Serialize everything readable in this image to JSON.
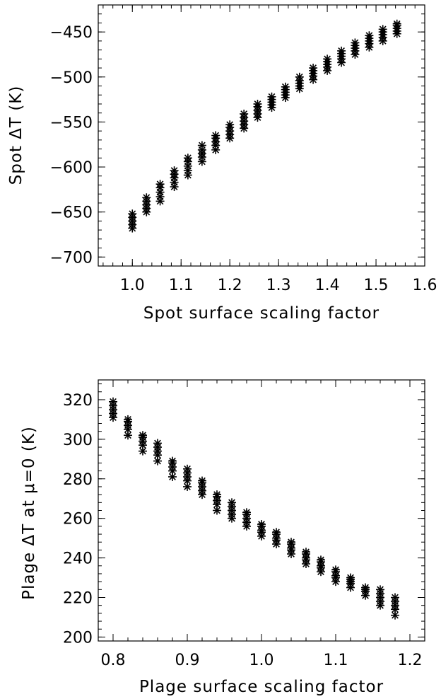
{
  "chart_data": [
    {
      "type": "scatter",
      "xlabel": "Spot surface scaling factor",
      "ylabel": "Spot ΔT (K)",
      "xlim": [
        0.93,
        1.6
      ],
      "ylim": [
        -710,
        -420
      ],
      "xticks": [
        1.0,
        1.1,
        1.2,
        1.3,
        1.4,
        1.5,
        1.6
      ],
      "xtick_labels": [
        "1.0",
        "1.1",
        "1.2",
        "1.3",
        "1.4",
        "1.5",
        "1.6"
      ],
      "yticks": [
        -700,
        -650,
        -600,
        -550,
        -500,
        -450
      ],
      "ytick_labels": [
        "−700",
        "−650",
        "−600",
        "−550",
        "−500",
        "−450"
      ],
      "grid": false,
      "marker": "asterisk",
      "points": [
        {
          "x": 1.0,
          "y": [
            -668,
            -664,
            -660,
            -656,
            -652
          ]
        },
        {
          "x": 1.029,
          "y": [
            -650,
            -646,
            -642,
            -638,
            -634
          ]
        },
        {
          "x": 1.057,
          "y": [
            -638,
            -633,
            -628,
            -623,
            -619
          ]
        },
        {
          "x": 1.086,
          "y": [
            -622,
            -617,
            -612,
            -608,
            -604
          ]
        },
        {
          "x": 1.114,
          "y": [
            -609,
            -604,
            -599,
            -594,
            -590
          ]
        },
        {
          "x": 1.143,
          "y": [
            -594,
            -589,
            -585,
            -581,
            -576
          ]
        },
        {
          "x": 1.171,
          "y": [
            -581,
            -576,
            -572,
            -568,
            -565
          ]
        },
        {
          "x": 1.2,
          "y": [
            -568,
            -564,
            -560,
            -556,
            -553
          ]
        },
        {
          "x": 1.229,
          "y": [
            -557,
            -553,
            -549,
            -545,
            -541
          ]
        },
        {
          "x": 1.257,
          "y": [
            -545,
            -541,
            -537,
            -533,
            -530
          ]
        },
        {
          "x": 1.286,
          "y": [
            -534,
            -531,
            -528,
            -525,
            -522
          ]
        },
        {
          "x": 1.314,
          "y": [
            -523,
            -520,
            -517,
            -514,
            -511
          ]
        },
        {
          "x": 1.343,
          "y": [
            -513,
            -510,
            -507,
            -504,
            -500
          ]
        },
        {
          "x": 1.371,
          "y": [
            -503,
            -499,
            -496,
            -493,
            -490
          ]
        },
        {
          "x": 1.4,
          "y": [
            -493,
            -489,
            -486,
            -483,
            -480
          ]
        },
        {
          "x": 1.429,
          "y": [
            -484,
            -480,
            -477,
            -474,
            -471
          ]
        },
        {
          "x": 1.457,
          "y": [
            -475,
            -471,
            -468,
            -465,
            -462
          ]
        },
        {
          "x": 1.486,
          "y": [
            -467,
            -463,
            -460,
            -457,
            -454
          ]
        },
        {
          "x": 1.514,
          "y": [
            -460,
            -456,
            -453,
            -450,
            -447
          ]
        },
        {
          "x": 1.543,
          "y": [
            -452,
            -449,
            -446,
            -443,
            -441
          ]
        }
      ]
    },
    {
      "type": "scatter",
      "xlabel": "Plage surface scaling factor",
      "ylabel": "Plage ΔT at μ=0 (K)",
      "xlim": [
        0.78,
        1.22
      ],
      "ylim": [
        198,
        330
      ],
      "xticks": [
        0.8,
        0.9,
        1.0,
        1.1,
        1.2
      ],
      "xtick_labels": [
        "0.8",
        "0.9",
        "1.0",
        "1.1",
        "1.2"
      ],
      "yticks": [
        200,
        220,
        240,
        260,
        280,
        300,
        320
      ],
      "ytick_labels": [
        "200",
        "220",
        "240",
        "260",
        "280",
        "300",
        "320"
      ],
      "grid": false,
      "marker": "asterisk",
      "points": [
        {
          "x": 0.8,
          "y": [
            311,
            313,
            315,
            317,
            319
          ]
        },
        {
          "x": 0.82,
          "y": [
            302,
            305,
            307,
            309,
            310
          ]
        },
        {
          "x": 0.84,
          "y": [
            294,
            297,
            299,
            301,
            302
          ]
        },
        {
          "x": 0.86,
          "y": [
            289,
            292,
            294,
            296,
            298
          ]
        },
        {
          "x": 0.88,
          "y": [
            281,
            284,
            286,
            288,
            289
          ]
        },
        {
          "x": 0.9,
          "y": [
            276,
            279,
            281,
            283,
            285
          ]
        },
        {
          "x": 0.92,
          "y": [
            272,
            274,
            276,
            278,
            279
          ]
        },
        {
          "x": 0.94,
          "y": [
            264,
            267,
            269,
            271,
            272
          ]
        },
        {
          "x": 0.96,
          "y": [
            260,
            262,
            264,
            266,
            268
          ]
        },
        {
          "x": 0.98,
          "y": [
            256,
            258,
            260,
            262,
            263
          ]
        },
        {
          "x": 1.0,
          "y": [
            251,
            253,
            254,
            256,
            257
          ]
        },
        {
          "x": 1.02,
          "y": [
            247,
            249,
            250,
            252,
            253
          ]
        },
        {
          "x": 1.04,
          "y": [
            242,
            244,
            245,
            247,
            248
          ]
        },
        {
          "x": 1.06,
          "y": [
            237,
            239,
            240,
            242,
            243
          ]
        },
        {
          "x": 1.08,
          "y": [
            233,
            235,
            236,
            238,
            239
          ]
        },
        {
          "x": 1.1,
          "y": [
            228,
            230,
            231,
            233,
            234
          ]
        },
        {
          "x": 1.12,
          "y": [
            225,
            227,
            228,
            229,
            230
          ]
        },
        {
          "x": 1.14,
          "y": [
            221,
            223,
            224,
            225
          ]
        },
        {
          "x": 1.16,
          "y": [
            216,
            218,
            220,
            222,
            224
          ]
        },
        {
          "x": 1.18,
          "y": [
            211,
            214,
            216,
            218,
            220
          ]
        }
      ]
    }
  ]
}
